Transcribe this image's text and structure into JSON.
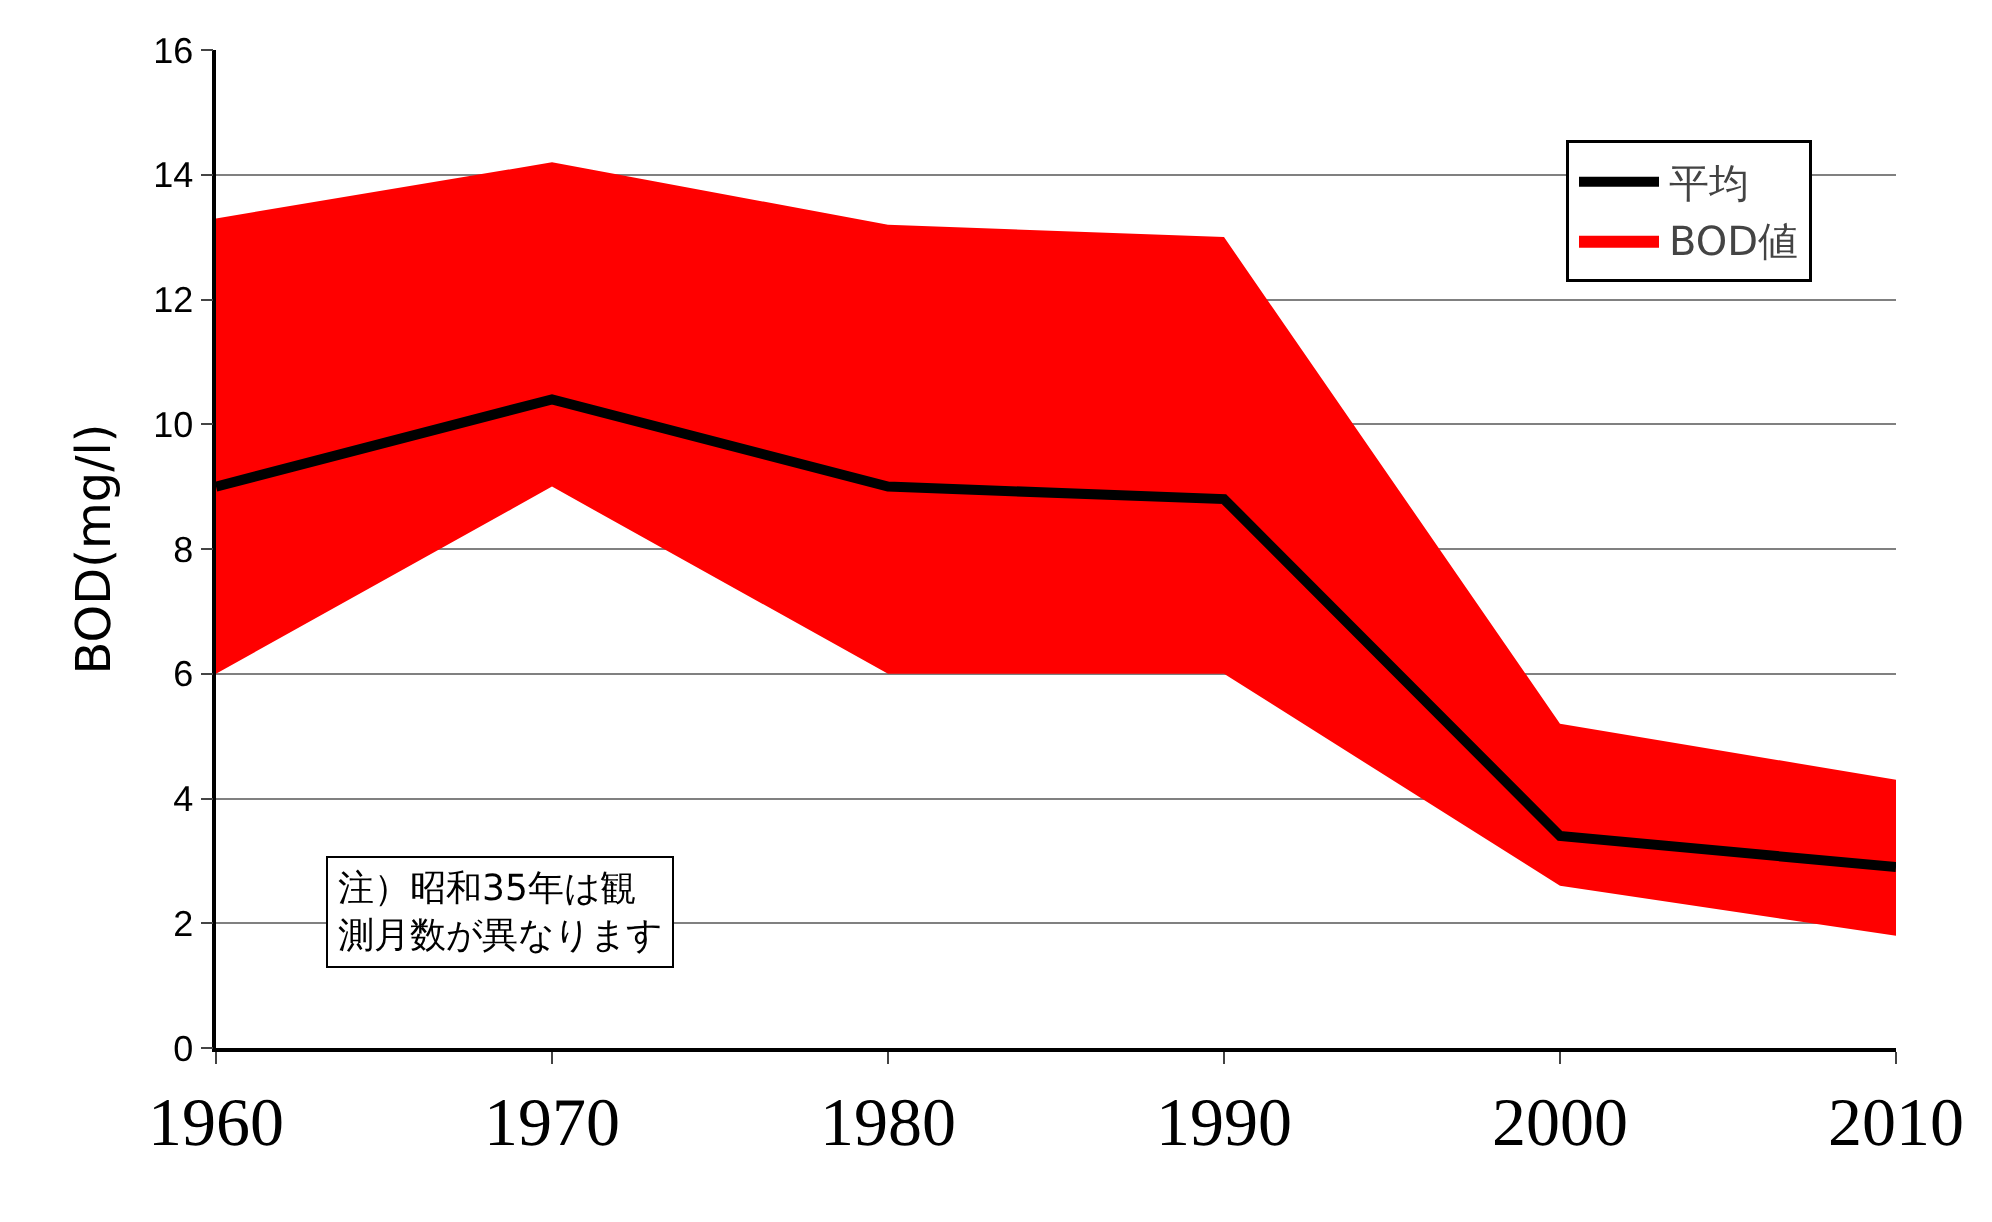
{
  "chart_data": {
    "type": "line",
    "ylabel": "BOD(mg/l)",
    "x": [
      1960,
      1970,
      1980,
      1990,
      2000,
      2010
    ],
    "xlim": [
      1960,
      2010
    ],
    "xticks": [
      1960,
      1970,
      1980,
      1990,
      2000,
      2010
    ],
    "ylim": [
      0,
      16
    ],
    "yticks": [
      0,
      2,
      4,
      6,
      8,
      10,
      12,
      14,
      16
    ],
    "grid": "y",
    "legend": "top right",
    "marker": "none",
    "line_style": "solid",
    "series": [
      {
        "name": "平均",
        "type": "line",
        "color": "#000000",
        "values": [
          9.0,
          10.4,
          9.0,
          8.8,
          3.4,
          2.9
        ],
        "lower": [
          6.0,
          9.0,
          6.0,
          6.0,
          2.6,
          1.8
        ],
        "upper": [
          13.3,
          14.2,
          13.2,
          13.0,
          5.2,
          4.3
        ]
      },
      {
        "name": "BOD値",
        "type": "area",
        "color": "#ff0000",
        "values": [
          null,
          null,
          null,
          null,
          null,
          null
        ]
      }
    ],
    "annotations": [
      "注）昭和35年は観測月数が異なります"
    ]
  }
}
